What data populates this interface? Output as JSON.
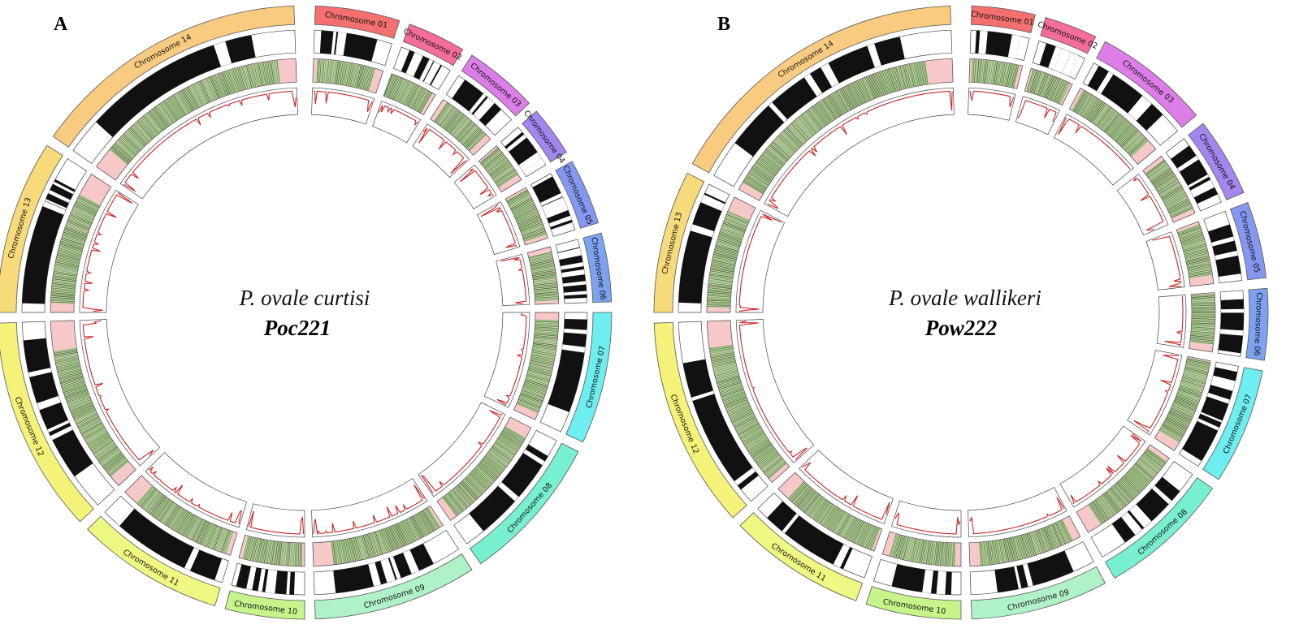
{
  "panels": [
    {
      "letter": "A",
      "species": "P. ovale curtisi",
      "isolate": "Poc221",
      "chromosomes": [
        {
          "label": "Chromosome 01",
          "color": "#f46f6f"
        },
        {
          "label": "Chromosome 02",
          "color": "#f56d9a"
        },
        {
          "label": "Chromosome 03",
          "color": "#dd7ee8"
        },
        {
          "label": "Chromosome 04",
          "color": "#a386ee"
        },
        {
          "label": "Chromosome 05",
          "color": "#8597f0"
        },
        {
          "label": "Chromosome 06",
          "color": "#7da3f0"
        },
        {
          "label": "Chromosome 07",
          "color": "#6eeef0"
        },
        {
          "label": "Chromosome 08",
          "color": "#78efd0"
        },
        {
          "label": "Chromosome 09",
          "color": "#b0f2c8"
        },
        {
          "label": "Chromosome 10",
          "color": "#c6f38a"
        },
        {
          "label": "Chromosome 11",
          "color": "#eff882"
        },
        {
          "label": "Chromosome 12",
          "color": "#f5f27a"
        },
        {
          "label": "Chromosome 13",
          "color": "#f7da7a"
        },
        {
          "label": "Chromosome 14",
          "color": "#f8cb80"
        }
      ]
    },
    {
      "letter": "B",
      "species": "P. ovale wallikeri",
      "isolate": "Pow222",
      "chromosomes": [
        {
          "label": "Chromosome 01",
          "color": "#f46f6f"
        },
        {
          "label": "Chromosome 02",
          "color": "#f56d9a"
        },
        {
          "label": "Chromosome 03",
          "color": "#dd7ee8"
        },
        {
          "label": "Chromosome 04",
          "color": "#a386ee"
        },
        {
          "label": "Chromosome 05",
          "color": "#8597f0"
        },
        {
          "label": "Chromosome 06",
          "color": "#7da3f0"
        },
        {
          "label": "Chromosome 07",
          "color": "#6eeef0"
        },
        {
          "label": "Chromosome 08",
          "color": "#78efd0"
        },
        {
          "label": "Chromosome 09",
          "color": "#b0f2c8"
        },
        {
          "label": "Chromosome 10",
          "color": "#c6f38a"
        },
        {
          "label": "Chromosome 11",
          "color": "#eff882"
        },
        {
          "label": "Chromosome 12",
          "color": "#f5f27a"
        },
        {
          "label": "Chromosome 13",
          "color": "#f7da7a"
        },
        {
          "label": "Chromosome 14",
          "color": "#f8cb80"
        }
      ]
    }
  ],
  "track_colors": {
    "density": "#111111",
    "variant": "#2f9a2f",
    "variant_bg": "#f6c8c8",
    "line": "#cc2222"
  }
}
